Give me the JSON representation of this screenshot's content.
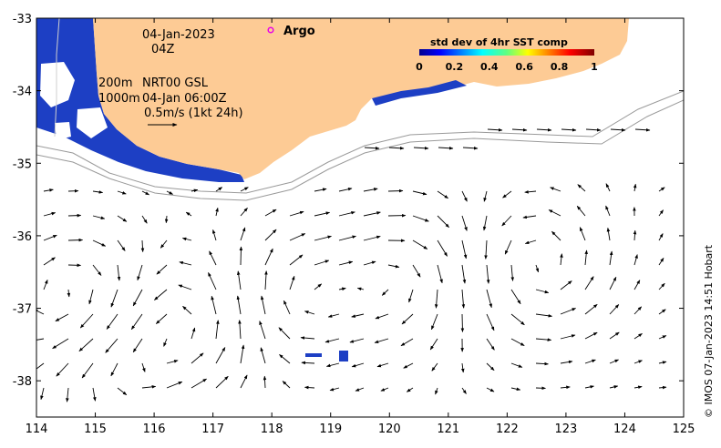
{
  "map": {
    "date": "04-Jan-2023",
    "time": "04Z",
    "argo_label": "Argo",
    "isobath_shallow": "200m",
    "isobath_deep": "1000m",
    "product": "NRT00 GSL",
    "product_time": "04-Jan 06:00Z",
    "scale_label": "0.5m/s (1kt 24h)",
    "credit": "© IMOS 07-Jan-2023 14:51 Hobart",
    "x_ticks": [
      "114",
      "115",
      "116",
      "117",
      "118",
      "119",
      "120",
      "121",
      "122",
      "123",
      "124",
      "125"
    ],
    "y_ticks": [
      "-33",
      "-34",
      "-35",
      "-36",
      "-37",
      "-38"
    ],
    "land_color": "#fdcb95",
    "sst_color": "#1d3fc4",
    "argo_color": "#e800e8"
  },
  "legend": {
    "title": "std dev of 4hr SST comp",
    "ticks": [
      "0",
      "0.2",
      "0.4",
      "0.6",
      "0.8",
      "1"
    ]
  },
  "chart_data": {
    "type": "heatmap",
    "title": "",
    "xlabel": "",
    "ylabel": "",
    "xlim": [
      114,
      125
    ],
    "ylim": [
      -38.5,
      -33
    ],
    "colorbar": {
      "label": "std dev of 4hr SST comp",
      "range": [
        0,
        1
      ]
    }
  }
}
